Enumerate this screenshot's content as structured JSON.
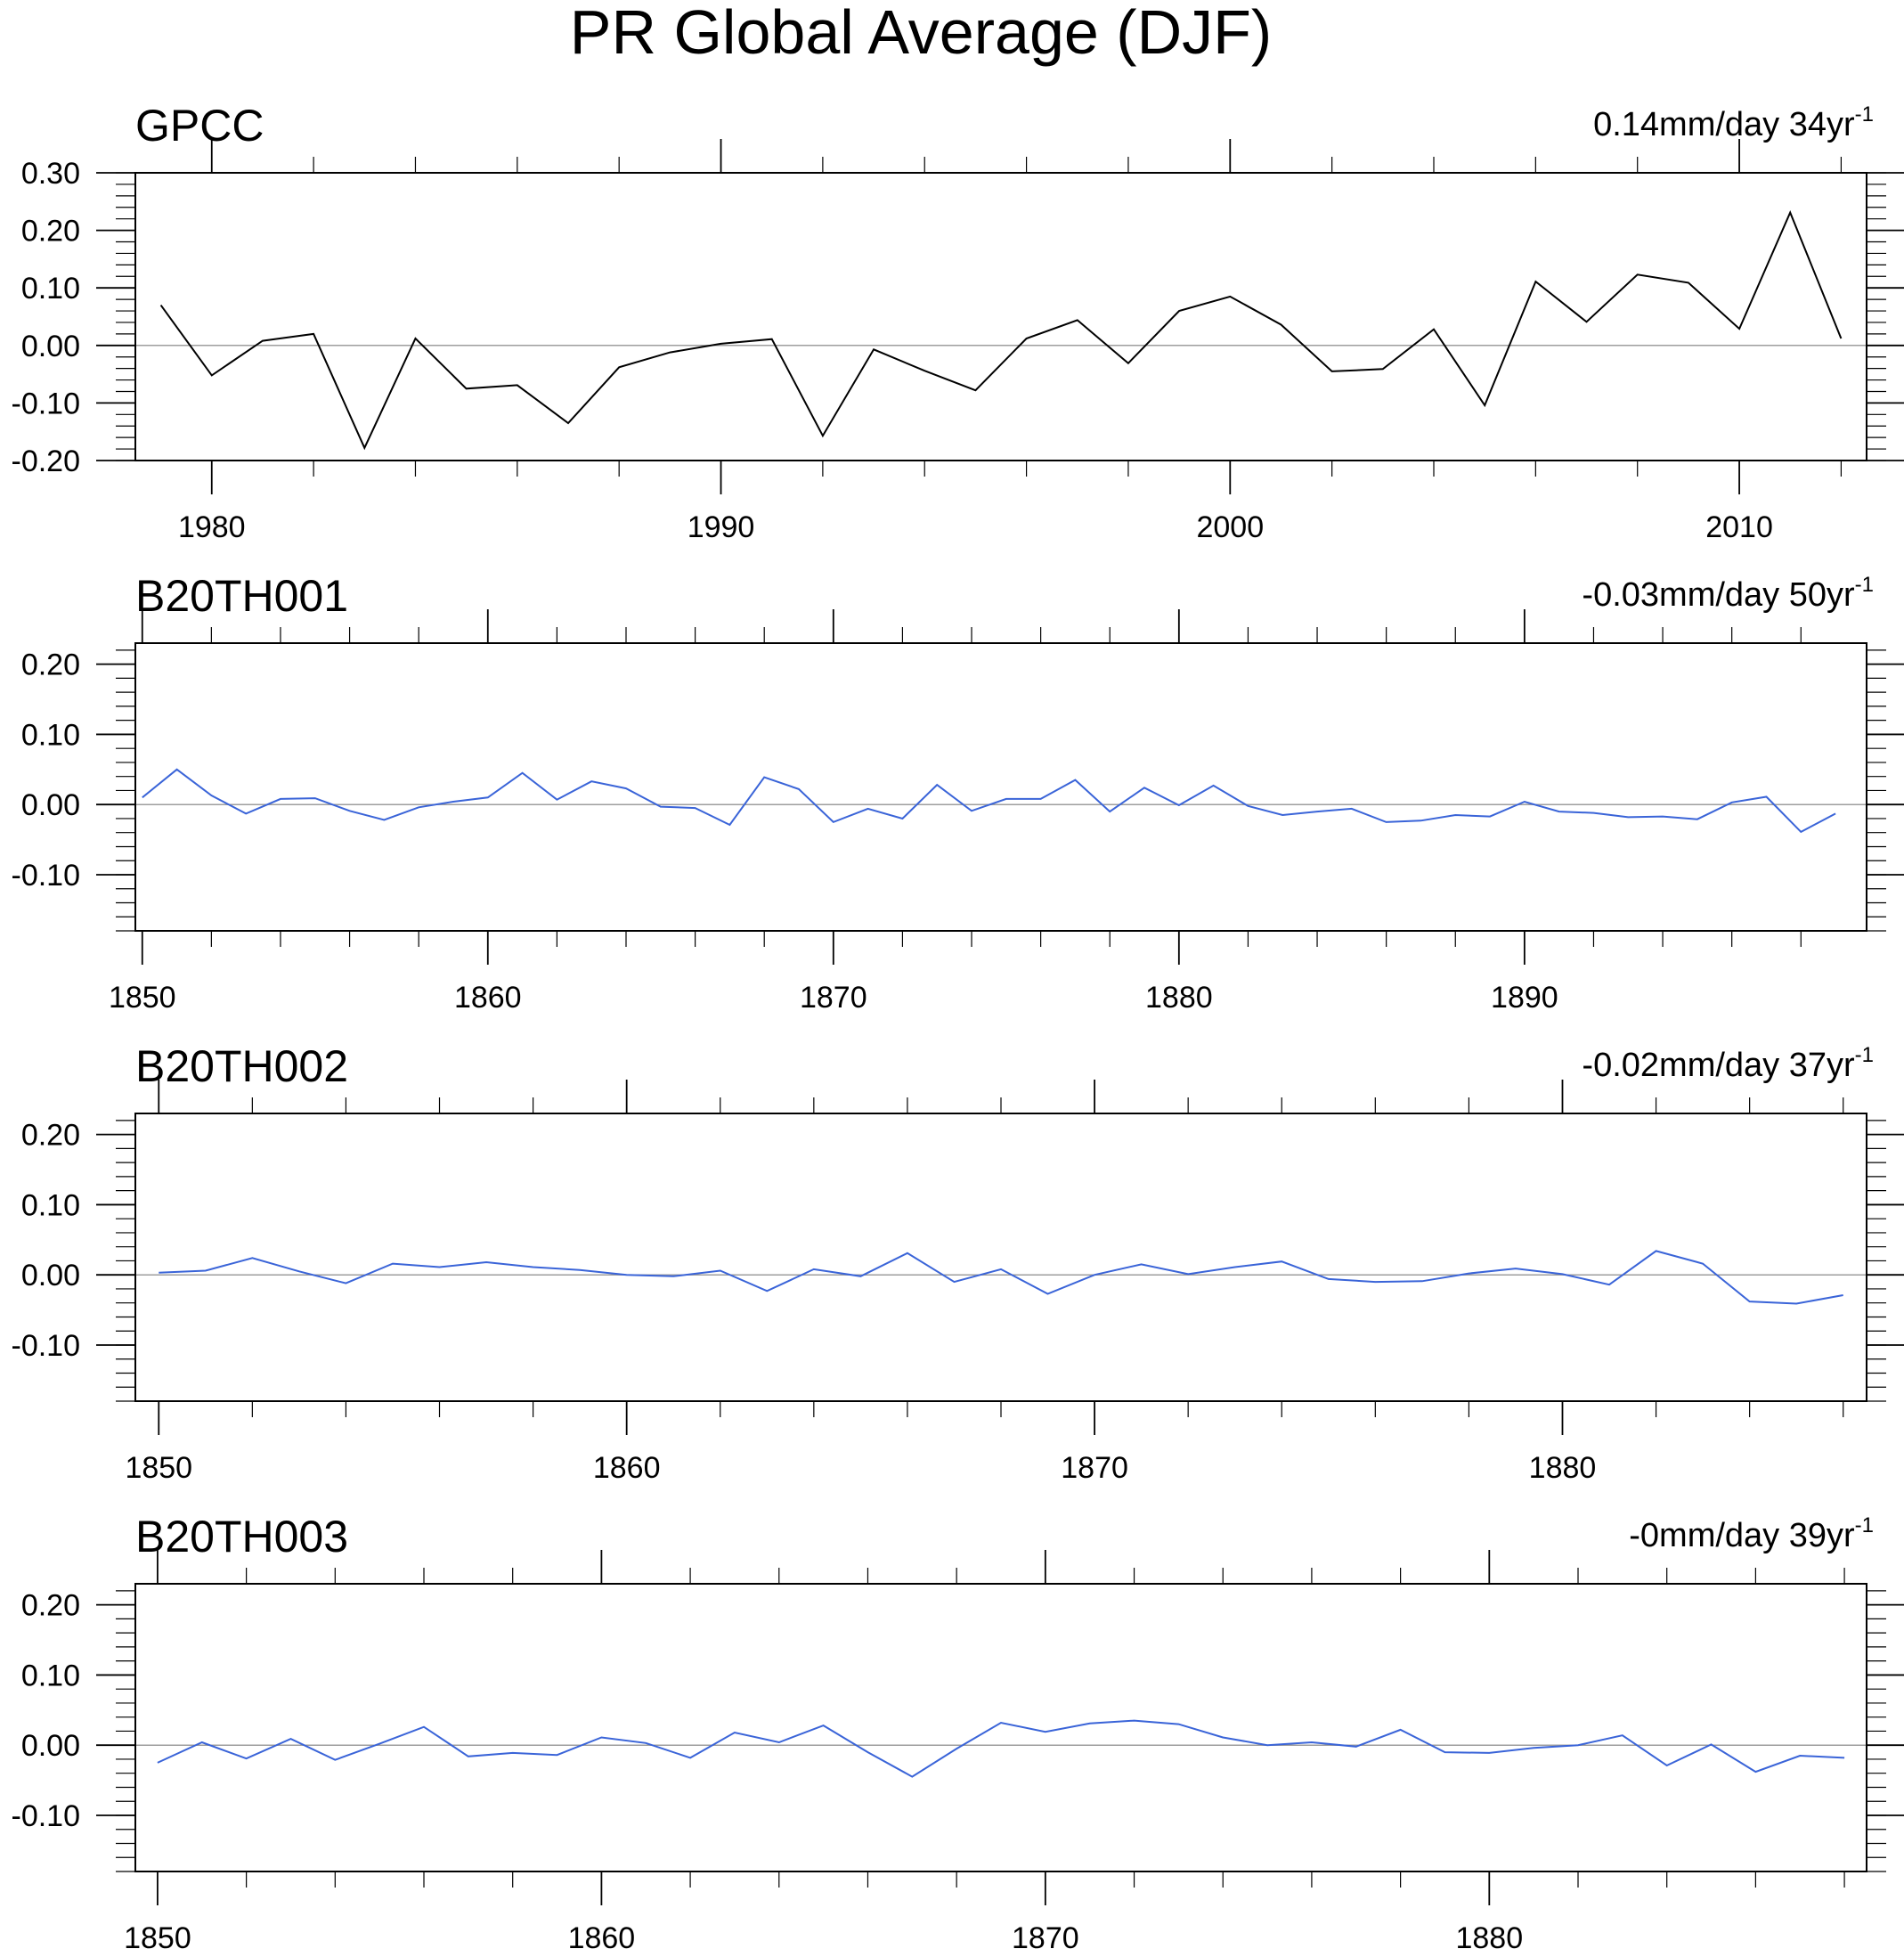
{
  "title": "PR Global Average (DJF)",
  "colors": {
    "obs_line": "#000000",
    "model_line": "#3a64d8",
    "zero_line": "#9e9e9e",
    "axis": "#000000"
  },
  "chart_data": [
    {
      "type": "line",
      "title": "GPCC",
      "annotation": "0.14mm/day 34yr",
      "annotation_superscript": "-1",
      "xlim": [
        1978.5,
        2012.5
      ],
      "ylim": [
        -0.2,
        0.3
      ],
      "xticks": [
        1980,
        1990,
        2000,
        2010
      ],
      "xminor": [
        1982,
        1984,
        1986,
        1988,
        1992,
        1994,
        1996,
        1998,
        2002,
        2004,
        2006,
        2008,
        2012
      ],
      "yticks": [
        -0.2,
        -0.1,
        0.0,
        0.1,
        0.2,
        0.3
      ],
      "ytick_labels": [
        "-0.20",
        "-0.10",
        "0.00",
        "0.10",
        "0.20",
        "0.30"
      ],
      "x_start": 1979,
      "series": [
        {
          "color": "#000000",
          "values": [
            0.07,
            -0.052,
            0.008,
            0.02,
            -0.178,
            0.012,
            -0.075,
            -0.069,
            -0.135,
            -0.038,
            -0.012,
            0.003,
            0.011,
            -0.157,
            -0.007,
            -0.044,
            -0.078,
            0.012,
            0.044,
            -0.031,
            0.06,
            0.085,
            0.036,
            -0.045,
            -0.041,
            0.028,
            -0.104,
            0.111,
            0.041,
            0.123,
            0.109,
            0.029,
            0.231,
            0.012
          ]
        }
      ]
    },
    {
      "type": "line",
      "title": "B20TH001",
      "annotation": "-0.03mm/day 50yr",
      "annotation_superscript": "-1",
      "xlim": [
        1849.8,
        1899.9
      ],
      "ylim": [
        -0.18,
        0.23
      ],
      "xticks": [
        1850,
        1860,
        1870,
        1880,
        1890
      ],
      "xminor": [
        1852,
        1854,
        1856,
        1858,
        1862,
        1864,
        1866,
        1868,
        1872,
        1874,
        1876,
        1878,
        1882,
        1884,
        1886,
        1888,
        1892,
        1894,
        1896,
        1898
      ],
      "yticks": [
        -0.1,
        0.0,
        0.1,
        0.2
      ],
      "ytick_labels": [
        "-0.10",
        "0.00",
        "0.10",
        "0.20"
      ],
      "x_start": 1850,
      "series": [
        {
          "color": "#3a64d8",
          "values": [
            0.01,
            0.05,
            0.013,
            -0.013,
            0.008,
            0.009,
            -0.009,
            -0.022,
            -0.004,
            0.004,
            0.01,
            0.045,
            0.007,
            0.033,
            0.023,
            -0.003,
            -0.005,
            -0.029,
            0.039,
            0.022,
            -0.025,
            -0.006,
            -0.02,
            0.028,
            -0.009,
            0.008,
            0.008,
            0.035,
            -0.01,
            0.024,
            -0.001,
            0.027,
            -0.002,
            -0.015,
            -0.01,
            -0.006,
            -0.025,
            -0.023,
            -0.015,
            -0.017,
            0.004,
            -0.01,
            -0.012,
            -0.018,
            -0.017,
            -0.021,
            0.003,
            0.011,
            -0.039,
            -0.013
          ]
        }
      ]
    },
    {
      "type": "line",
      "title": "B20TH002",
      "annotation": "-0.02mm/day 37yr",
      "annotation_superscript": "-1",
      "xlim": [
        1849.5,
        1886.5
      ],
      "ylim": [
        -0.18,
        0.23
      ],
      "xticks": [
        1850,
        1860,
        1870,
        1880
      ],
      "xminor": [
        1852,
        1854,
        1856,
        1858,
        1862,
        1864,
        1866,
        1868,
        1872,
        1874,
        1876,
        1878,
        1882,
        1884,
        1886
      ],
      "yticks": [
        -0.1,
        0.0,
        0.1,
        0.2
      ],
      "ytick_labels": [
        "-0.10",
        "0.00",
        "0.10",
        "0.20"
      ],
      "x_start": 1850,
      "series": [
        {
          "color": "#3a64d8",
          "values": [
            0.003,
            0.006,
            0.024,
            0.005,
            -0.012,
            0.016,
            0.011,
            0.018,
            0.011,
            0.007,
            0.0,
            -0.002,
            0.006,
            -0.023,
            0.008,
            -0.002,
            0.031,
            -0.01,
            0.008,
            -0.027,
            0.0,
            0.015,
            0.001,
            0.011,
            0.019,
            -0.006,
            -0.01,
            -0.009,
            0.002,
            0.009,
            0.001,
            -0.014,
            0.034,
            0.016,
            -0.038,
            -0.041,
            -0.029
          ]
        }
      ]
    },
    {
      "type": "line",
      "title": "B20TH003",
      "annotation": "-0mm/day 39yr",
      "annotation_superscript": "-1",
      "xlim": [
        1849.5,
        1888.5
      ],
      "ylim": [
        -0.18,
        0.23
      ],
      "xticks": [
        1850,
        1860,
        1870,
        1880
      ],
      "xminor": [
        1852,
        1854,
        1856,
        1858,
        1862,
        1864,
        1866,
        1868,
        1872,
        1874,
        1876,
        1878,
        1882,
        1884,
        1886,
        1888
      ],
      "yticks": [
        -0.1,
        0.0,
        0.1,
        0.2
      ],
      "ytick_labels": [
        "-0.10",
        "0.00",
        "0.10",
        "0.20"
      ],
      "x_start": 1850,
      "series": [
        {
          "color": "#3a64d8",
          "values": [
            -0.025,
            0.004,
            -0.019,
            0.009,
            -0.021,
            0.002,
            0.026,
            -0.016,
            -0.011,
            -0.014,
            0.011,
            0.003,
            -0.018,
            0.018,
            0.004,
            0.028,
            -0.01,
            -0.045,
            -0.005,
            0.032,
            0.019,
            0.031,
            0.035,
            0.03,
            0.011,
            0.0,
            0.004,
            -0.002,
            0.022,
            -0.01,
            -0.011,
            -0.004,
            0.0,
            0.014,
            -0.029,
            0.001,
            -0.038,
            -0.015,
            -0.018
          ]
        }
      ]
    }
  ]
}
